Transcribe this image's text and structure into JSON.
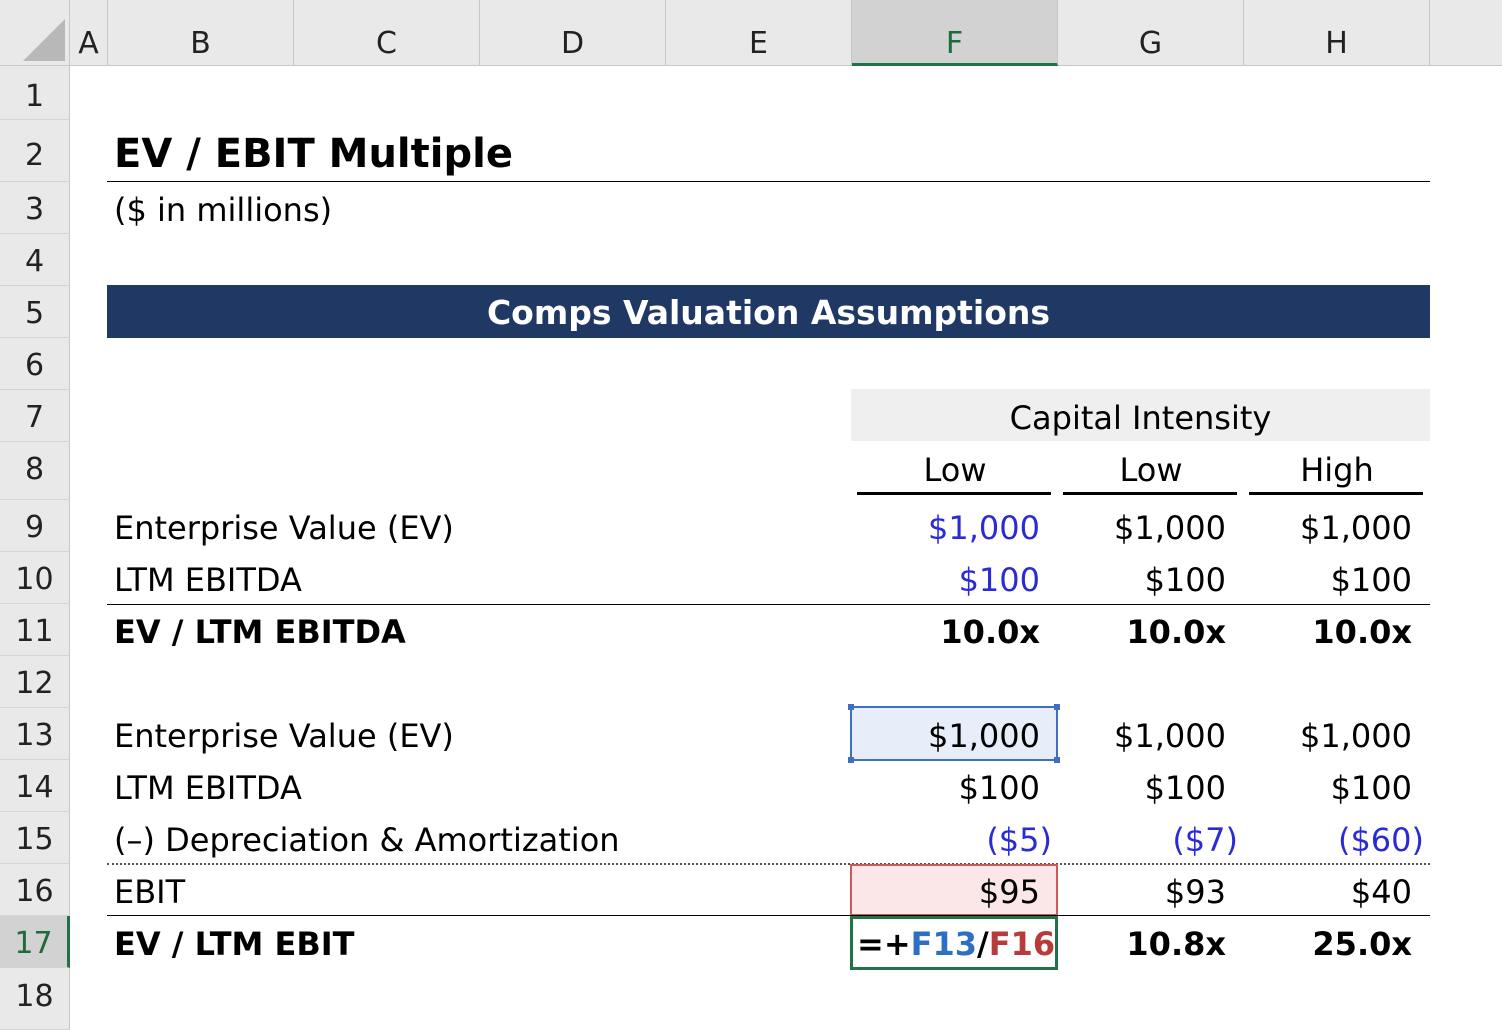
{
  "columns": [
    "A",
    "B",
    "C",
    "D",
    "E",
    "F",
    "G",
    "H"
  ],
  "rows": [
    "1",
    "2",
    "3",
    "4",
    "5",
    "6",
    "7",
    "8",
    "9",
    "10",
    "11",
    "12",
    "13",
    "14",
    "15",
    "16",
    "17",
    "18"
  ],
  "title": "EV / EBIT Multiple",
  "subtitle": "($ in millions)",
  "banner": "Comps Valuation Assumptions",
  "capital_intensity": "Capital Intensity",
  "scenario_headers": [
    "Low",
    "Low",
    "High"
  ],
  "table1": {
    "rows": [
      {
        "label": "Enterprise Value (EV)",
        "values": [
          "$1,000",
          "$1,000",
          "$1,000"
        ]
      },
      {
        "label": "LTM EBITDA",
        "values": [
          "$100",
          "$100",
          "$100"
        ]
      },
      {
        "label": "EV / LTM EBITDA",
        "values": [
          "10.0x",
          "10.0x",
          "10.0x"
        ]
      }
    ]
  },
  "table2": {
    "rows": [
      {
        "label": "Enterprise Value (EV)",
        "values": [
          "$1,000",
          "$1,000",
          "$1,000"
        ]
      },
      {
        "label": "LTM EBITDA",
        "values": [
          "$100",
          "$100",
          "$100"
        ]
      },
      {
        "label": "(–) Depreciation & Amortization",
        "values": [
          "($5)",
          "($7)",
          "($60)"
        ]
      },
      {
        "label": "EBIT",
        "values": [
          "$95",
          "$93",
          "$40"
        ]
      },
      {
        "label": "EV / LTM EBIT",
        "values": [
          "",
          "10.8x",
          "25.0x"
        ]
      }
    ]
  },
  "formula": {
    "prefix": "=+",
    "ref1": "F13",
    "op": "/",
    "ref2": "F16"
  },
  "colors": {
    "banner": "#1f3864",
    "input_blue": "#2b2bd6",
    "select_green": "#217346"
  }
}
